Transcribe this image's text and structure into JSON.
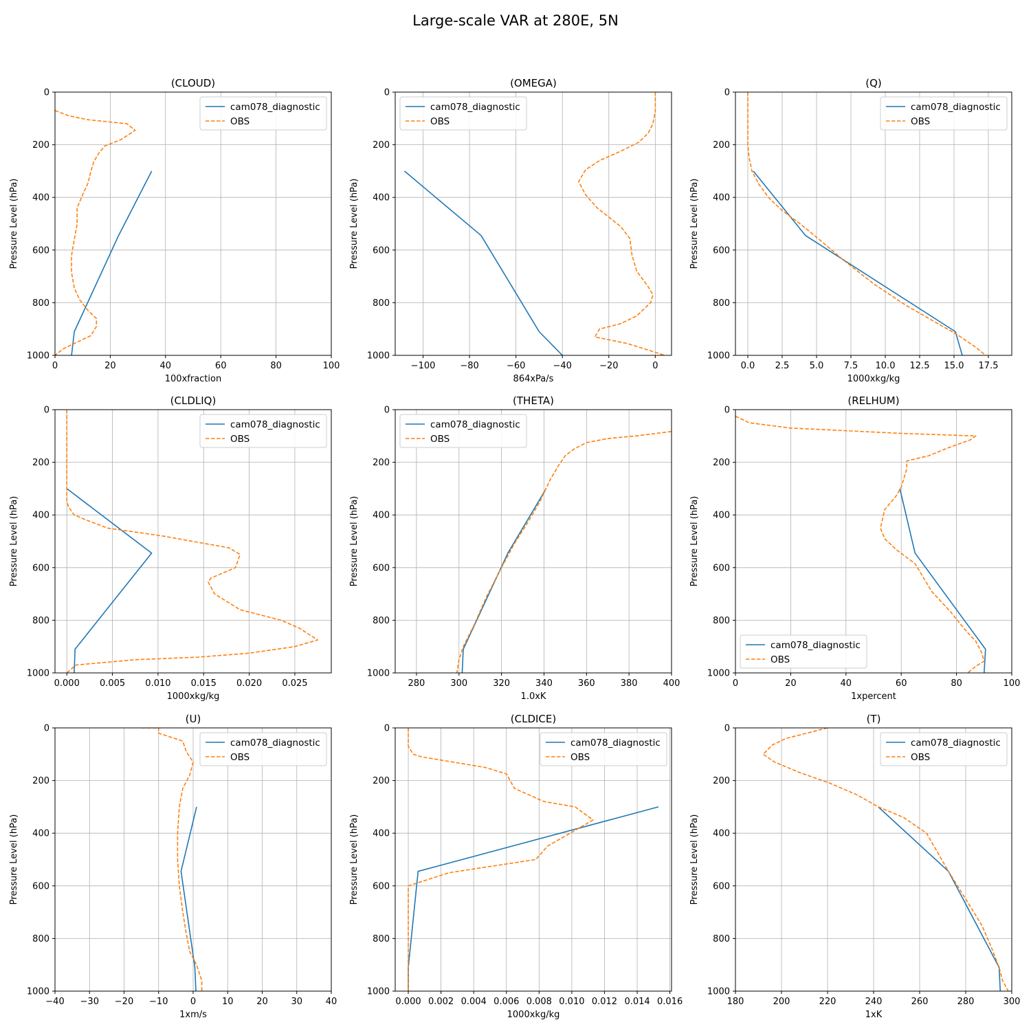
{
  "figure": {
    "title": "Large-scale VAR at 280E, 5N"
  },
  "style": {
    "model_color": "#1f77b4",
    "obs_color": "#ff7f0e",
    "grid_color": "#b0b0b0"
  },
  "chart_data": [
    {
      "type": "line",
      "title": "(CLOUD)",
      "xlabel": "100xfraction",
      "ylabel": "Pressure Level (hPa)",
      "xlim": [
        0,
        100
      ],
      "ylim": [
        1000,
        0
      ],
      "grid": true,
      "legend": "upper right",
      "xticks": [
        0,
        20,
        40,
        60,
        80,
        100
      ],
      "xtick_labels": [
        "0",
        "20",
        "40",
        "60",
        "80",
        "100"
      ],
      "yticks": [
        0,
        200,
        400,
        600,
        800,
        1000
      ],
      "ytick_labels": [
        "0",
        "200",
        "400",
        "600",
        "800",
        "1000"
      ],
      "series": [
        {
          "name": "cam078_diagnostic",
          "style": "solid",
          "x": [
            35,
            23,
            7,
            6
          ],
          "y": [
            300,
            545,
            910,
            1000
          ]
        },
        {
          "name": "OBS",
          "style": "dashed",
          "x": [
            0,
            5,
            12,
            26,
            29,
            24,
            18,
            16,
            14,
            13,
            12,
            10,
            8,
            8,
            7,
            6,
            6,
            7,
            9,
            12,
            15,
            15,
            13,
            8,
            3,
            0
          ],
          "y": [
            70,
            90,
            105,
            120,
            145,
            180,
            205,
            230,
            265,
            300,
            345,
            390,
            440,
            500,
            560,
            620,
            685,
            745,
            790,
            830,
            860,
            890,
            925,
            950,
            975,
            1000
          ]
        }
      ]
    },
    {
      "type": "line",
      "title": "(OMEGA)",
      "xlabel": "864xPa/s",
      "ylabel": "Pressure Level (hPa)",
      "xlim": [
        -112,
        7
      ],
      "ylim": [
        1000,
        0
      ],
      "grid": true,
      "legend": "upper left",
      "xticks": [
        -100,
        -80,
        -60,
        -40,
        -20,
        0
      ],
      "xtick_labels": [
        "−100",
        "−80",
        "−60",
        "−40",
        "−20",
        "0"
      ],
      "yticks": [
        0,
        200,
        400,
        600,
        800,
        1000
      ],
      "ytick_labels": [
        "0",
        "200",
        "400",
        "600",
        "800",
        "1000"
      ],
      "series": [
        {
          "name": "cam078_diagnostic",
          "style": "solid",
          "x": [
            -108,
            -75,
            -50,
            -40
          ],
          "y": [
            300,
            545,
            910,
            1000
          ]
        },
        {
          "name": "OBS",
          "style": "dashed",
          "x": [
            0,
            0,
            -1,
            -3,
            -7,
            -15,
            -24,
            -30,
            -33,
            -30,
            -25,
            -15,
            -11,
            -10,
            -8,
            -3,
            -1,
            -2,
            -8,
            -15,
            -24,
            -26,
            -12,
            -3,
            4
          ],
          "y": [
            0,
            70,
            120,
            155,
            190,
            225,
            260,
            295,
            340,
            390,
            440,
            510,
            555,
            620,
            680,
            740,
            770,
            800,
            850,
            880,
            900,
            930,
            955,
            980,
            1000
          ]
        }
      ]
    },
    {
      "type": "line",
      "title": "(Q)",
      "xlabel": "1000xkg/kg",
      "ylabel": "Pressure Level (hPa)",
      "xlim": [
        -0.9,
        19.2
      ],
      "ylim": [
        1000,
        0
      ],
      "grid": true,
      "legend": "upper right",
      "xticks": [
        0,
        2.5,
        5,
        7.5,
        10,
        12.5,
        15,
        17.5
      ],
      "xtick_labels": [
        "0.0",
        "2.5",
        "5.0",
        "7.5",
        "10.0",
        "12.5",
        "15.0",
        "17.5"
      ],
      "yticks": [
        0,
        200,
        400,
        600,
        800,
        1000
      ],
      "ytick_labels": [
        "0",
        "200",
        "400",
        "600",
        "800",
        "1000"
      ],
      "series": [
        {
          "name": "cam078_diagnostic",
          "style": "solid",
          "x": [
            0.4,
            4.2,
            15.1,
            15.6
          ],
          "y": [
            300,
            545,
            910,
            1000
          ]
        },
        {
          "name": "OBS",
          "style": "dashed",
          "x": [
            0,
            0,
            0,
            0.1,
            0.3,
            0.8,
            1.5,
            2.5,
            3.8,
            5.2,
            7.0,
            9.2,
            11.5,
            13.5,
            15.2,
            16.6,
            17.3
          ],
          "y": [
            0,
            100,
            200,
            250,
            300,
            350,
            400,
            450,
            500,
            560,
            640,
            730,
            810,
            870,
            920,
            970,
            1000
          ]
        }
      ]
    },
    {
      "type": "line",
      "title": "(CLDLIQ)",
      "xlabel": "1000xkg/kg",
      "ylabel": "Pressure Level (hPa)",
      "xlim": [
        -0.0013,
        0.029
      ],
      "ylim": [
        1000,
        0
      ],
      "grid": true,
      "legend": "upper right",
      "xticks": [
        0,
        0.005,
        0.01,
        0.015,
        0.02,
        0.025
      ],
      "xtick_labels": [
        "0.000",
        "0.005",
        "0.010",
        "0.015",
        "0.020",
        "0.025"
      ],
      "yticks": [
        0,
        200,
        400,
        600,
        800,
        1000
      ],
      "ytick_labels": [
        "0",
        "200",
        "400",
        "600",
        "800",
        "1000"
      ],
      "series": [
        {
          "name": "cam078_diagnostic",
          "style": "solid",
          "x": [
            0,
            0.0093,
            0.0009,
            0.0008
          ],
          "y": [
            300,
            545,
            910,
            1000
          ]
        },
        {
          "name": "OBS",
          "style": "dashed",
          "x": [
            0,
            0,
            0,
            0.0002,
            0.0008,
            0.0022,
            0.0045,
            0.0105,
            0.0178,
            0.019,
            0.0185,
            0.0158,
            0.0155,
            0.0162,
            0.019,
            0.0235,
            0.0255,
            0.0275,
            0.025,
            0.02,
            0.0145,
            0.0075,
            0.001,
            0
          ],
          "y": [
            0,
            200,
            350,
            370,
            400,
            420,
            450,
            480,
            525,
            550,
            600,
            640,
            655,
            700,
            760,
            800,
            830,
            875,
            900,
            925,
            940,
            950,
            970,
            1000
          ]
        }
      ]
    },
    {
      "type": "line",
      "title": "(THETA)",
      "xlabel": "1.0xK",
      "ylabel": "Pressure Level (hPa)",
      "xlim": [
        270,
        400
      ],
      "ylim": [
        1000,
        0
      ],
      "grid": true,
      "legend": "upper left",
      "xticks": [
        280,
        300,
        320,
        340,
        360,
        380,
        400
      ],
      "xtick_labels": [
        "280",
        "300",
        "320",
        "340",
        "360",
        "380",
        "400"
      ],
      "yticks": [
        0,
        200,
        400,
        600,
        800,
        1000
      ],
      "ytick_labels": [
        "0",
        "200",
        "400",
        "600",
        "800",
        "1000"
      ],
      "series": [
        {
          "name": "cam078_diagnostic",
          "style": "solid",
          "x": [
            341,
            323,
            302,
            301.5
          ],
          "y": [
            300,
            545,
            910,
            1000
          ]
        },
        {
          "name": "OBS",
          "style": "dashed",
          "x": [
            400,
            383,
            370,
            360,
            354,
            350,
            347,
            343,
            338,
            333,
            326,
            320,
            313,
            307,
            302,
            300,
            299
          ],
          "y": [
            83,
            100,
            110,
            125,
            150,
            175,
            210,
            265,
            350,
            420,
            510,
            600,
            710,
            820,
            900,
            950,
            1000
          ]
        }
      ]
    },
    {
      "type": "line",
      "title": "(RELHUM)",
      "xlabel": "1xpercent",
      "ylabel": "Pressure Level (hPa)",
      "xlim": [
        0,
        100
      ],
      "ylim": [
        1000,
        0
      ],
      "grid": true,
      "legend": "lower left",
      "xticks": [
        0,
        20,
        40,
        60,
        80,
        100
      ],
      "xtick_labels": [
        "0",
        "20",
        "40",
        "60",
        "80",
        "100"
      ],
      "yticks": [
        0,
        200,
        400,
        600,
        800,
        1000
      ],
      "ytick_labels": [
        "0",
        "200",
        "400",
        "600",
        "800",
        "1000"
      ],
      "series": [
        {
          "name": "cam078_diagnostic",
          "style": "solid",
          "x": [
            59.5,
            65,
            90.5,
            90
          ],
          "y": [
            300,
            545,
            910,
            1000
          ]
        },
        {
          "name": "OBS",
          "style": "dashed",
          "x": [
            0,
            5,
            20,
            60,
            87,
            85,
            77,
            70,
            62,
            62,
            60,
            58,
            54,
            52.5,
            54,
            58,
            65,
            71,
            78,
            83,
            87,
            89,
            90,
            87,
            84
          ],
          "y": [
            25,
            50,
            70,
            90,
            100,
            115,
            145,
            175,
            195,
            225,
            295,
            330,
            380,
            450,
            490,
            530,
            585,
            690,
            770,
            835,
            880,
            920,
            955,
            975,
            1000
          ]
        }
      ]
    },
    {
      "type": "line",
      "title": "(U)",
      "xlabel": "1xm/s",
      "ylabel": "Pressure Level (hPa)",
      "xlim": [
        -40,
        40
      ],
      "ylim": [
        1000,
        0
      ],
      "grid": true,
      "legend": "upper right",
      "xticks": [
        -40,
        -30,
        -20,
        -10,
        0,
        10,
        20,
        30,
        40
      ],
      "xtick_labels": [
        "−40",
        "−30",
        "−20",
        "−10",
        "0",
        "10",
        "20",
        "30",
        "40"
      ],
      "yticks": [
        0,
        200,
        400,
        600,
        800,
        1000
      ],
      "ytick_labels": [
        "0",
        "200",
        "400",
        "600",
        "800",
        "1000"
      ],
      "series": [
        {
          "name": "cam078_diagnostic",
          "style": "solid",
          "x": [
            1,
            -3.5,
            0.5,
            0.8
          ],
          "y": [
            300,
            545,
            910,
            1000
          ]
        },
        {
          "name": "OBS",
          "style": "dashed",
          "x": [
            -15,
            -10,
            -10,
            -3,
            -2,
            0,
            -1,
            -3,
            -4,
            -4.5,
            -4.5,
            -4,
            -3,
            -2,
            -1,
            1,
            2.5,
            2.5
          ],
          "y": [
            0,
            0,
            20,
            50,
            90,
            130,
            180,
            230,
            300,
            400,
            500,
            600,
            700,
            780,
            850,
            900,
            960,
            1000
          ]
        }
      ]
    },
    {
      "type": "line",
      "title": "(CLDICE)",
      "xlabel": "1000xkg/kg",
      "ylabel": "Pressure Level (hPa)",
      "xlim": [
        -0.0008,
        0.0161
      ],
      "ylim": [
        1000,
        0
      ],
      "grid": true,
      "legend": "upper right",
      "xticks": [
        0,
        0.002,
        0.004,
        0.006,
        0.008,
        0.01,
        0.012,
        0.014,
        0.016
      ],
      "xtick_labels": [
        "0.000",
        "0.002",
        "0.004",
        "0.006",
        "0.008",
        "0.010",
        "0.012",
        "0.014",
        "0.016"
      ],
      "yticks": [
        0,
        200,
        400,
        600,
        800,
        1000
      ],
      "ytick_labels": [
        "0",
        "200",
        "400",
        "600",
        "800",
        "1000"
      ],
      "series": [
        {
          "name": "cam078_diagnostic",
          "style": "solid",
          "x": [
            0.0153,
            0.0006,
            0,
            0
          ],
          "y": [
            300,
            545,
            910,
            1000
          ]
        },
        {
          "name": "OBS",
          "style": "dashed",
          "x": [
            0,
            0,
            0.0003,
            0.0008,
            0.0047,
            0.006,
            0.0065,
            0.0083,
            0.0102,
            0.0113,
            0.0085,
            0.0078,
            0.0025,
            0.0005,
            0,
            0,
            0
          ],
          "y": [
            0,
            70,
            100,
            110,
            150,
            175,
            230,
            280,
            300,
            350,
            450,
            500,
            550,
            590,
            600,
            800,
            1000
          ]
        }
      ]
    },
    {
      "type": "line",
      "title": "(T)",
      "xlabel": "1xK",
      "ylabel": "Pressure Level (hPa)",
      "xlim": [
        180,
        300
      ],
      "ylim": [
        1000,
        0
      ],
      "grid": true,
      "legend": "upper right",
      "xticks": [
        180,
        200,
        220,
        240,
        260,
        280,
        300
      ],
      "xtick_labels": [
        "180",
        "200",
        "220",
        "240",
        "260",
        "280",
        "300"
      ],
      "yticks": [
        0,
        200,
        400,
        600,
        800,
        1000
      ],
      "ytick_labels": [
        "0",
        "200",
        "400",
        "600",
        "800",
        "1000"
      ],
      "series": [
        {
          "name": "cam078_diagnostic",
          "style": "solid",
          "x": [
            242,
            272.5,
            294.5,
            295
          ],
          "y": [
            300,
            545,
            910,
            1000
          ]
        },
        {
          "name": "OBS",
          "style": "dashed",
          "x": [
            220,
            211,
            202,
            196,
            192,
            197,
            208,
            221,
            233,
            242,
            253,
            263,
            272.5,
            280,
            287,
            291,
            294.5,
            296,
            298.5
          ],
          "y": [
            0,
            20,
            40,
            65,
            100,
            130,
            170,
            210,
            255,
            300,
            340,
            400,
            545,
            650,
            750,
            830,
            910,
            960,
            1000
          ]
        }
      ]
    }
  ]
}
